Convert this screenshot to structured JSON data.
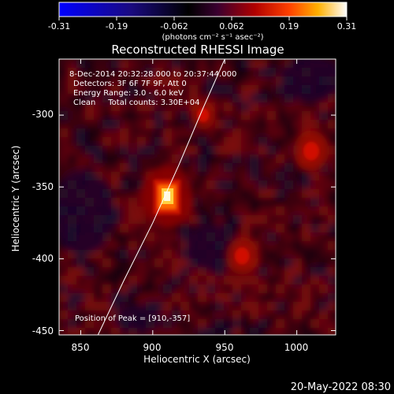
{
  "colorbar": {
    "ticks": [
      "-0.31",
      "-0.19",
      "-0.062",
      "0.062",
      "0.19",
      "0.31"
    ],
    "unit_label": "(photons cm⁻² s⁻¹ asec⁻²)"
  },
  "image": {
    "title": "Reconstructed RHESSI Image",
    "info_lines": [
      "8-Dec-2014 20:32:28.000 to 20:37:44.000",
      "Detectors: 3F 6F 7F 9F, Att 0",
      "Energy Range: 3.0 - 6.0 keV",
      "Clean     Total counts: 3.30E+04"
    ],
    "peak_label": "Position of Peak = [910,-357]"
  },
  "axes": {
    "xlabel": "Heliocentric X (arcsec)",
    "ylabel": "Heliocentric Y (arcsec)",
    "x_ticks": [
      "850",
      "900",
      "950",
      "1000"
    ],
    "y_ticks": [
      "-300",
      "-350",
      "-400",
      "-450"
    ]
  },
  "footer": {
    "timestamp": "20-May-2022 08:30"
  },
  "chart_data": {
    "type": "heatmap",
    "title": "Reconstructed RHESSI Image",
    "xlabel": "Heliocentric X (arcsec)",
    "ylabel": "Heliocentric Y (arcsec)",
    "xlim": [
      835,
      1027
    ],
    "ylim": [
      -453,
      -261
    ],
    "color_range": [
      -0.31,
      0.31
    ],
    "peak": [
      910,
      -357
    ],
    "sources": [
      {
        "x": 910,
        "y": -357,
        "intensity": 0.31
      },
      {
        "x": 1010,
        "y": -325,
        "intensity": 0.13
      },
      {
        "x": 962,
        "y": -398,
        "intensity": 0.11
      },
      {
        "x": 935,
        "y": -300,
        "intensity": 0.06
      }
    ],
    "limb_curve": [
      [
        862,
        -453
      ],
      [
        880,
        -415
      ],
      [
        900,
        -375
      ],
      [
        918,
        -335
      ],
      [
        935,
        -295
      ],
      [
        950,
        -261
      ]
    ]
  }
}
